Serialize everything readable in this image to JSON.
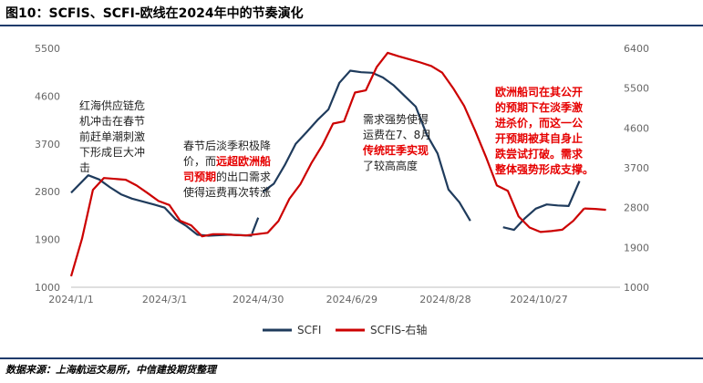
{
  "header": {
    "title": "图10：SCFIS、SCFI-欧线在2024年中的节奏演化"
  },
  "footer": {
    "source": "数据来源：上海航运交易所，中信建投期货整理"
  },
  "colors": {
    "scfi": "#1f3b5c",
    "scfis": "#cc0000",
    "accent_red": "#e60000",
    "rule": "#1f3b6b"
  },
  "chart_data": {
    "type": "line",
    "title": "",
    "xlabel": "",
    "ylabel": "",
    "x_ticks": [
      "2024/1/1",
      "2024/3/1",
      "2024/4/30",
      "2024/6/29",
      "2024/8/28",
      "2024/10/27"
    ],
    "left_axis": {
      "ylim": [
        1000,
        5500
      ],
      "ticks": [
        "5500",
        "4600",
        "3700",
        "2800",
        "1900",
        "1000"
      ]
    },
    "right_axis": {
      "ylim": [
        1000,
        6400
      ],
      "ticks": [
        "6400",
        "5500",
        "4600",
        "3700",
        "2800",
        "1900",
        "1000"
      ]
    },
    "grid": false,
    "legend": {
      "position": "bottom",
      "items": [
        "SCFI",
        "SCFIS-右轴"
      ]
    },
    "series": [
      {
        "name": "SCFI",
        "axis": "left",
        "segments": [
          {
            "x": [
              "2024-01-01",
              "2024-01-12",
              "2024-01-19",
              "2024-01-26",
              "2024-02-02",
              "2024-02-09",
              "2024-02-23",
              "2024-03-01",
              "2024-03-08",
              "2024-03-15",
              "2024-03-22",
              "2024-03-29",
              "2024-04-05",
              "2024-04-12",
              "2024-04-19",
              "2024-04-26"
            ],
            "y": [
              2780,
              3110,
              3030,
              2880,
              2750,
              2670,
              2560,
              2500,
              2280,
              2150,
              1990,
              1970,
              1980,
              1990,
              1980,
              1970
            ]
          },
          {
            "x": [
              "2024-04-26",
              "2024-04-30"
            ],
            "y": [
              2010,
              2310
            ]
          },
          {
            "x": [
              "2024-05-03",
              "2024-05-10",
              "2024-05-17",
              "2024-05-24",
              "2024-05-31",
              "2024-06-07",
              "2024-06-14",
              "2024-06-21",
              "2024-06-28",
              "2024-07-05",
              "2024-07-12",
              "2024-07-19",
              "2024-07-26",
              "2024-08-02",
              "2024-08-09",
              "2024-08-16",
              "2024-08-23",
              "2024-08-30",
              "2024-09-06",
              "2024-09-13"
            ],
            "y": [
              2800,
              2950,
              3300,
              3700,
              3920,
              4150,
              4350,
              4850,
              5080,
              5050,
              5040,
              4950,
              4800,
              4600,
              4400,
              3880,
              3520,
              2840,
              2600,
              2250
            ]
          },
          {
            "x": [
              "2024-10-04",
              "2024-10-11",
              "2024-10-18",
              "2024-10-25",
              "2024-11-01",
              "2024-11-08",
              "2024-11-15",
              "2024-11-22"
            ],
            "y": [
              2130,
              2080,
              2300,
              2480,
              2560,
              2540,
              2530,
              3000
            ]
          }
        ]
      },
      {
        "name": "SCFIS-右轴",
        "axis": "right",
        "segments": [
          {
            "x": [
              "2024-01-01",
              "2024-01-08",
              "2024-01-15",
              "2024-01-22",
              "2024-02-05",
              "2024-02-12",
              "2024-02-19",
              "2024-02-26",
              "2024-03-04",
              "2024-03-11",
              "2024-03-18",
              "2024-03-25",
              "2024-04-01",
              "2024-04-08",
              "2024-04-15",
              "2024-04-22",
              "2024-04-29",
              "2024-05-06",
              "2024-05-13",
              "2024-05-20",
              "2024-05-27",
              "2024-06-03",
              "2024-06-10",
              "2024-06-17",
              "2024-06-24",
              "2024-07-01",
              "2024-07-08",
              "2024-07-15",
              "2024-07-22",
              "2024-07-29",
              "2024-08-05",
              "2024-08-12",
              "2024-08-19",
              "2024-08-26",
              "2024-09-02",
              "2024-09-09",
              "2024-09-16",
              "2024-09-23",
              "2024-09-30",
              "2024-10-07",
              "2024-10-14",
              "2024-10-21",
              "2024-10-28",
              "2024-11-04",
              "2024-11-11",
              "2024-11-18",
              "2024-11-25"
            ],
            "y": [
              1250,
              2100,
              3200,
              3470,
              3430,
              3300,
              3130,
              2950,
              2860,
              2500,
              2400,
              2150,
              2200,
              2200,
              2180,
              2170,
              2200,
              2230,
              2500,
              3000,
              3330,
              3800,
              4200,
              4700,
              4750,
              5400,
              5450,
              5980,
              6300,
              6220,
              6150,
              6080,
              6000,
              5850,
              5500,
              5100,
              4550,
              3950,
              3300,
              3180,
              2600,
              2350,
              2250,
              2270,
              2300,
              2500,
              2780
            ]
          },
          {
            "x": [
              "2024-11-25",
              "2024-12-02",
              "2024-12-09"
            ],
            "y": [
              2780,
              2770,
              2750
            ]
          }
        ]
      }
    ],
    "annotations": [
      {
        "lines": [
          "红海供应链危",
          "机冲击在春节",
          "前赶单潮刺激",
          "下形成巨大冲",
          "击"
        ],
        "style": "normal"
      },
      {
        "lines": [
          [
            {
              "text": "春节后淡季积极降",
              "red": false
            }
          ],
          [
            {
              "text": "价，而",
              "red": false
            },
            {
              "text": "远超欧洲船",
              "red": true
            }
          ],
          [
            {
              "text": "司预期",
              "red": true
            },
            {
              "text": "的出口需求",
              "red": false
            }
          ],
          [
            {
              "text": "使得运费再次转涨",
              "red": false
            }
          ]
        ],
        "style": "mixed"
      },
      {
        "lines": [
          [
            {
              "text": "需求强势使得",
              "red": false
            }
          ],
          [
            {
              "text": "运费在7、8月",
              "red": false
            }
          ],
          [
            {
              "text": "传统旺季实现",
              "red": true
            }
          ],
          [
            {
              "text": "了较高高度",
              "red": false
            }
          ]
        ],
        "style": "mixed"
      },
      {
        "lines": [
          "欧洲船司在其公开",
          "的预期下在淡季激",
          "进杀价，而这一公",
          "开预期被其自身止",
          "跌尝试打破。需求",
          "整体强势形成支撑。"
        ],
        "style": "red"
      }
    ]
  }
}
